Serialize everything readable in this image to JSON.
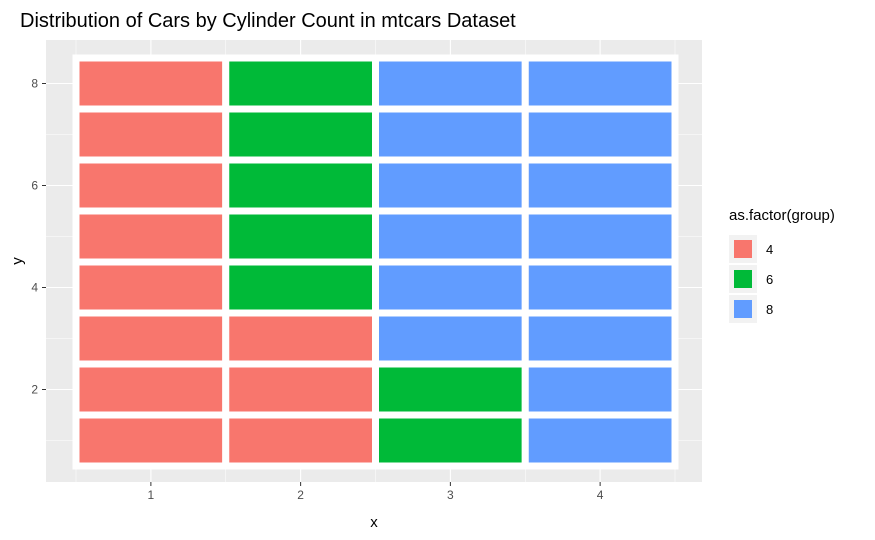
{
  "chart_data": {
    "type": "heatmap",
    "title": "Distribution of Cars by Cylinder Count in mtcars Dataset",
    "xlabel": "x",
    "ylabel": "y",
    "x_ticks": [
      "1",
      "2",
      "3",
      "4"
    ],
    "y_ticks": [
      "2",
      "4",
      "6",
      "8"
    ],
    "xlim": [
      0.5,
      4.5
    ],
    "ylim": [
      0.5,
      8.5
    ],
    "grid": true,
    "legend": {
      "title": "as.factor(group)",
      "position": "right",
      "entries": [
        {
          "label": "4",
          "color": "#F8766D"
        },
        {
          "label": "6",
          "color": "#00BA38"
        },
        {
          "label": "8",
          "color": "#619CFF"
        }
      ]
    },
    "cells": [
      {
        "x": 1,
        "y": 1,
        "group": "4"
      },
      {
        "x": 1,
        "y": 2,
        "group": "4"
      },
      {
        "x": 1,
        "y": 3,
        "group": "4"
      },
      {
        "x": 1,
        "y": 4,
        "group": "4"
      },
      {
        "x": 1,
        "y": 5,
        "group": "4"
      },
      {
        "x": 1,
        "y": 6,
        "group": "4"
      },
      {
        "x": 1,
        "y": 7,
        "group": "4"
      },
      {
        "x": 1,
        "y": 8,
        "group": "4"
      },
      {
        "x": 2,
        "y": 1,
        "group": "4"
      },
      {
        "x": 2,
        "y": 2,
        "group": "4"
      },
      {
        "x": 2,
        "y": 3,
        "group": "4"
      },
      {
        "x": 2,
        "y": 4,
        "group": "6"
      },
      {
        "x": 2,
        "y": 5,
        "group": "6"
      },
      {
        "x": 2,
        "y": 6,
        "group": "6"
      },
      {
        "x": 2,
        "y": 7,
        "group": "6"
      },
      {
        "x": 2,
        "y": 8,
        "group": "6"
      },
      {
        "x": 3,
        "y": 1,
        "group": "6"
      },
      {
        "x": 3,
        "y": 2,
        "group": "6"
      },
      {
        "x": 3,
        "y": 3,
        "group": "8"
      },
      {
        "x": 3,
        "y": 4,
        "group": "8"
      },
      {
        "x": 3,
        "y": 5,
        "group": "8"
      },
      {
        "x": 3,
        "y": 6,
        "group": "8"
      },
      {
        "x": 3,
        "y": 7,
        "group": "8"
      },
      {
        "x": 3,
        "y": 8,
        "group": "8"
      },
      {
        "x": 4,
        "y": 1,
        "group": "8"
      },
      {
        "x": 4,
        "y": 2,
        "group": "8"
      },
      {
        "x": 4,
        "y": 3,
        "group": "8"
      },
      {
        "x": 4,
        "y": 4,
        "group": "8"
      },
      {
        "x": 4,
        "y": 5,
        "group": "8"
      },
      {
        "x": 4,
        "y": 6,
        "group": "8"
      },
      {
        "x": 4,
        "y": 7,
        "group": "8"
      },
      {
        "x": 4,
        "y": 8,
        "group": "8"
      }
    ]
  },
  "colors": {
    "panel_background": "#EBEBEB",
    "grid_major": "#FFFFFF",
    "tile_border": "#FFFFFF"
  }
}
